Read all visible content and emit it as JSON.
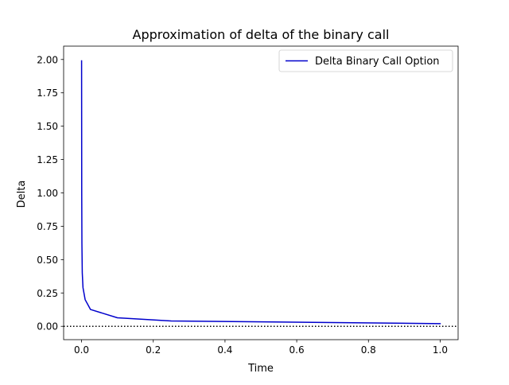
{
  "chart_data": {
    "type": "line",
    "title": "Approximation of delta of the binary call",
    "xlabel": "Time",
    "ylabel": "Delta",
    "xlim": [
      -0.05,
      1.05
    ],
    "ylim": [
      -0.1,
      2.1
    ],
    "xticks": [
      0.0,
      0.2,
      0.4,
      0.6,
      0.8,
      1.0
    ],
    "xtick_labels": [
      "0.0",
      "0.2",
      "0.4",
      "0.6",
      "0.8",
      "1.0"
    ],
    "yticks": [
      0.0,
      0.25,
      0.5,
      0.75,
      1.0,
      1.25,
      1.5,
      1.75,
      2.0
    ],
    "ytick_labels": [
      "0.00",
      "0.25",
      "0.50",
      "0.75",
      "1.00",
      "1.25",
      "1.50",
      "1.75",
      "2.00"
    ],
    "grid": false,
    "legend_position": "top-right",
    "reference_line": {
      "y": 0,
      "style": "dotted",
      "color": "#000000"
    },
    "series": [
      {
        "name": "Delta Binary Call Option",
        "color": "#0000cc",
        "x": [
          0.0001,
          0.0005,
          0.001,
          0.002,
          0.004,
          0.01,
          0.025,
          0.1,
          0.25,
          1.0
        ],
        "y": [
          1.99,
          1.0,
          0.62,
          0.4,
          0.29,
          0.2,
          0.126,
          0.064,
          0.04,
          0.02
        ]
      }
    ]
  }
}
